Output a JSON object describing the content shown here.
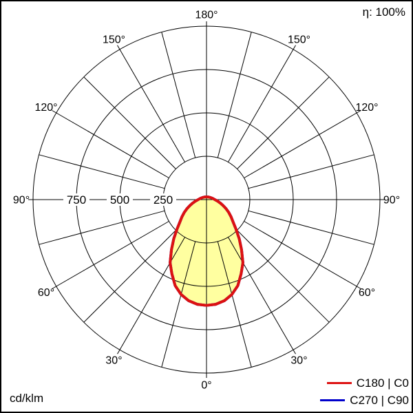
{
  "header": {
    "efficiency": "η: 100%"
  },
  "footer": {
    "unit": "cd/klm"
  },
  "legend": {
    "position": "bottom-right",
    "items": [
      {
        "label": "C180 | C0",
        "color": "#dd1111"
      },
      {
        "label": "C270 | C90",
        "color": "#0000cc"
      }
    ]
  },
  "chart_data": {
    "type": "polar",
    "subtype": "luminous-intensity-distribution",
    "unit": "cd/klm",
    "efficiency": "η: 100%",
    "rmax": 1000,
    "r_gridlines": [
      250,
      500,
      750,
      1000
    ],
    "r_tick_labels": [
      {
        "value": 250,
        "label": "250"
      },
      {
        "value": 500,
        "label": "500"
      },
      {
        "value": 750,
        "label": "750"
      }
    ],
    "angle_grid_step_deg": 15,
    "angle_tick_step_deg": 30,
    "angle_labels": [
      "0°",
      "30°",
      "60°",
      "90°",
      "120°",
      "150°",
      "180°"
    ],
    "grid": true,
    "colors": {
      "grid": "#000000",
      "background": "#ffffff",
      "curve_fill": "#ffffa0"
    },
    "series": [
      {
        "name": "C180 | C0",
        "color": "#dd1111",
        "fill": "#ffffa0",
        "symmetric": true,
        "gamma_deg": [
          0,
          5,
          10,
          15,
          20,
          25,
          30,
          35,
          40,
          45,
          50,
          55,
          60,
          65,
          70,
          75,
          80,
          85,
          90
        ],
        "values": [
          610,
          606,
          592,
          566,
          528,
          472,
          420,
          352,
          293,
          240,
          200,
          173,
          148,
          125,
          103,
          85,
          70,
          58,
          48
        ]
      },
      {
        "name": "C270 | C90",
        "color": "#0000cc",
        "fill": "#ffffa0",
        "symmetric": true,
        "hidden_behind_primary": true,
        "gamma_deg": [
          0,
          5,
          10,
          15,
          20,
          25,
          30,
          35,
          40,
          45,
          50,
          55,
          60,
          65,
          70,
          75,
          80,
          85,
          90
        ],
        "values": [
          610,
          606,
          592,
          566,
          528,
          472,
          420,
          352,
          293,
          240,
          200,
          173,
          148,
          125,
          103,
          85,
          70,
          58,
          48
        ]
      }
    ]
  }
}
